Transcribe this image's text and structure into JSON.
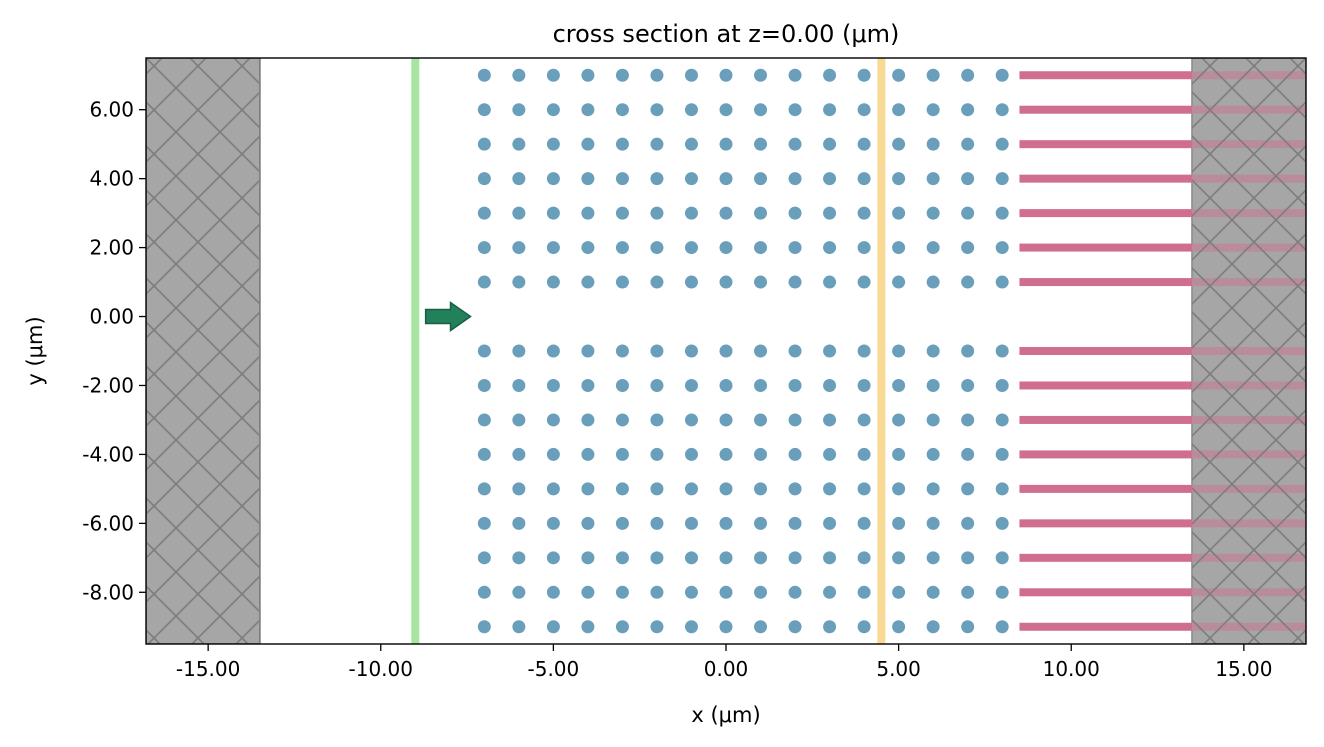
{
  "chart_data": {
    "type": "scatter",
    "title": "cross section at z=0.00 (μm)",
    "xlabel": "x (μm)",
    "ylabel": "y (μm)",
    "xlim": [
      -16.8,
      16.8
    ],
    "ylim": [
      -9.5,
      7.5
    ],
    "x_ticks": [
      -15,
      -10,
      -5,
      0,
      5,
      10,
      15
    ],
    "x_tick_labels": [
      "-15.00",
      "-10.00",
      "-5.00",
      "0.00",
      "5.00",
      "10.00",
      "15.00"
    ],
    "y_ticks": [
      6,
      4,
      2,
      0,
      -2,
      -4,
      -6,
      -8
    ],
    "y_tick_labels": [
      "6.00",
      "4.00",
      "2.00",
      "0.00",
      "-2.00",
      "-4.00",
      "-6.00",
      "-8.00"
    ],
    "holes": {
      "x": [
        -7,
        -6,
        -5,
        -4,
        -3,
        -2,
        -1,
        0,
        1,
        2,
        3,
        4,
        5,
        6,
        7,
        8
      ],
      "y": [
        7,
        6,
        5,
        4,
        3,
        2,
        1,
        -1,
        -2,
        -3,
        -4,
        -5,
        -6,
        -7,
        -8,
        -9
      ],
      "radius": 0.2,
      "color": "#6a9fbc"
    },
    "waveguides": {
      "y": [
        7,
        6,
        5,
        4,
        3,
        2,
        1,
        -1,
        -2,
        -3,
        -4,
        -5,
        -6,
        -7,
        -8,
        -9
      ],
      "x_start": 8.5,
      "x_end": 16.8,
      "width": 0.25,
      "color": "#cf6e8f"
    },
    "pml_regions": [
      {
        "x0": -16.8,
        "x1": -13.5,
        "color": "#a6a6a6"
      },
      {
        "x0": 13.5,
        "x1": 16.8,
        "color": "#a6a6a6"
      }
    ],
    "source_plane": {
      "x": -9.0,
      "color": "#a8e5a0"
    },
    "source_arrow": {
      "x0": -8.7,
      "x1": -7.4,
      "y": 0,
      "color": "#22805a"
    },
    "monitor_plane": {
      "x": 4.5,
      "color": "#f8da95"
    }
  }
}
